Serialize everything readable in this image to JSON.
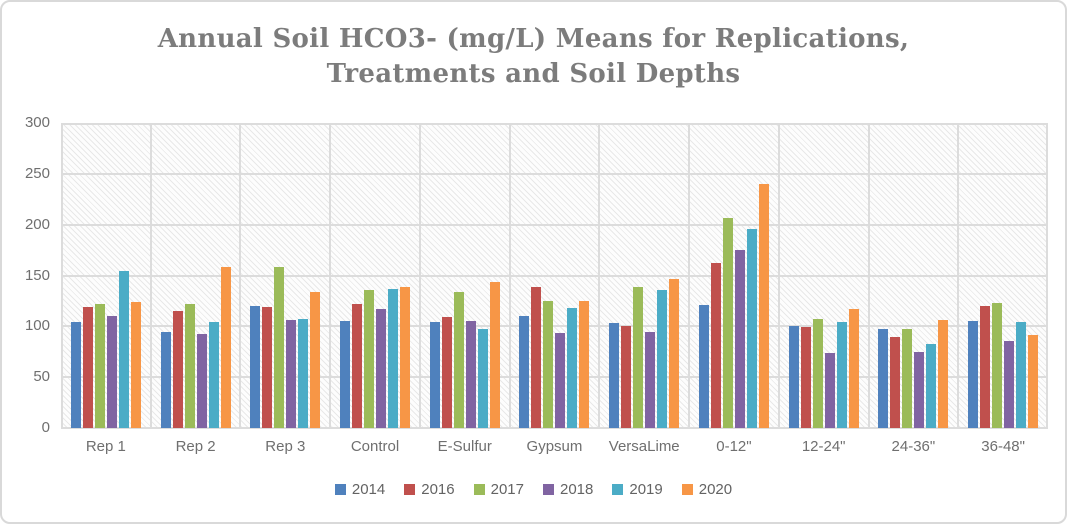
{
  "header": {
    "title_line1": "Annual Soil HCO3- (mg/L) Means for Replications,",
    "title_line2": "Treatments and Soil Depths"
  },
  "chart_data": {
    "type": "bar",
    "title": "Annual Soil HCO3- (mg/L) Means for Replications, Treatments and Soil Depths",
    "xlabel": "",
    "ylabel": "",
    "ylim": [
      0,
      300
    ],
    "yticks": [
      0,
      50,
      100,
      150,
      200,
      250,
      300
    ],
    "grid": true,
    "plot_background": "light-diagonal-hatch",
    "legend_position": "bottom",
    "categories": [
      "Rep 1",
      "Rep 2",
      "Rep 3",
      "Control",
      "E-Sulfur",
      "Gypsum",
      "VersaLime",
      "0-12\"",
      "12-24\"",
      "24-36\"",
      "36-48\""
    ],
    "series": [
      {
        "name": "2014",
        "color": "#4F81BD",
        "values": [
          104,
          94,
          120,
          105,
          104,
          110,
          103,
          121,
          100,
          97,
          105
        ]
      },
      {
        "name": "2016",
        "color": "#C0504D",
        "values": [
          119,
          115,
          119,
          122,
          109,
          139,
          100,
          162,
          99,
          90,
          120
        ]
      },
      {
        "name": "2017",
        "color": "#9BBB59",
        "values": [
          122,
          122,
          158,
          136,
          134,
          125,
          139,
          207,
          107,
          97,
          123
        ]
      },
      {
        "name": "2018",
        "color": "#8064A2",
        "values": [
          110,
          92,
          106,
          117,
          105,
          93,
          94,
          175,
          74,
          75,
          86
        ]
      },
      {
        "name": "2019",
        "color": "#4BACC6",
        "values": [
          154,
          104,
          107,
          137,
          97,
          118,
          136,
          196,
          104,
          83,
          104
        ]
      },
      {
        "name": "2020",
        "color": "#F79646",
        "values": [
          124,
          158,
          134,
          139,
          144,
          125,
          147,
          240,
          117,
          106,
          91
        ]
      }
    ]
  }
}
